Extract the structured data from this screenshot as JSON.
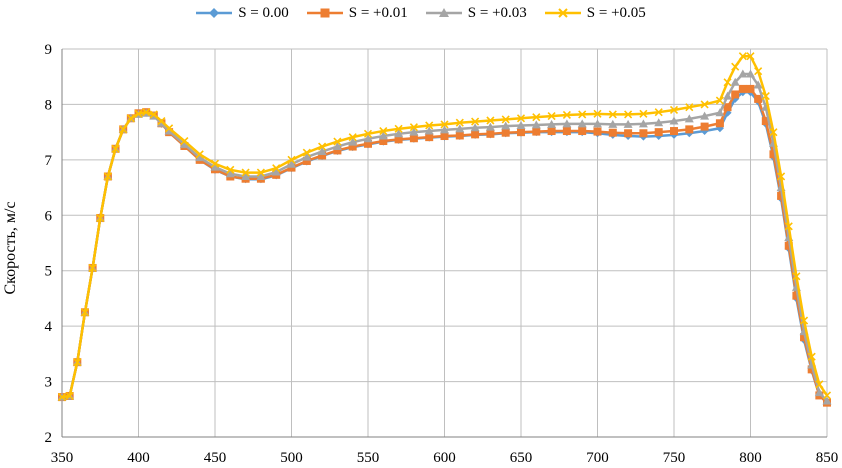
{
  "chart_data": {
    "type": "line",
    "title": "",
    "xlabel": "",
    "ylabel": "Скорость, м/с",
    "xlim": [
      350,
      850
    ],
    "ylim": [
      2,
      9
    ],
    "x_ticks": [
      "350",
      "400",
      "450",
      "500",
      "550",
      "600",
      "650",
      "700",
      "750",
      "800",
      "850"
    ],
    "y_ticks": [
      "2",
      "3",
      "4",
      "5",
      "6",
      "7",
      "8",
      "9"
    ],
    "grid": "both",
    "legend_position": "top",
    "x": [
      350,
      355,
      360,
      365,
      370,
      375,
      380,
      385,
      390,
      395,
      400,
      405,
      410,
      415,
      420,
      430,
      440,
      450,
      460,
      470,
      480,
      490,
      500,
      510,
      520,
      530,
      540,
      550,
      560,
      570,
      580,
      590,
      600,
      610,
      620,
      630,
      640,
      650,
      660,
      670,
      680,
      690,
      700,
      710,
      720,
      730,
      740,
      750,
      760,
      770,
      780,
      785,
      790,
      795,
      800,
      805,
      810,
      815,
      820,
      825,
      830,
      835,
      840,
      845,
      850
    ],
    "series": [
      {
        "name": "S = 0.00",
        "color": "#5B9BD5",
        "marker": "diamond",
        "values": [
          2.72,
          2.74,
          3.35,
          4.25,
          5.05,
          5.95,
          6.7,
          7.2,
          7.55,
          7.75,
          7.83,
          7.85,
          7.8,
          7.65,
          7.5,
          7.25,
          7.0,
          6.82,
          6.7,
          6.65,
          6.65,
          6.72,
          6.85,
          6.97,
          7.07,
          7.16,
          7.23,
          7.28,
          7.33,
          7.36,
          7.38,
          7.4,
          7.42,
          7.43,
          7.45,
          7.46,
          7.48,
          7.49,
          7.5,
          7.5,
          7.5,
          7.5,
          7.48,
          7.45,
          7.43,
          7.42,
          7.43,
          7.45,
          7.48,
          7.52,
          7.57,
          7.85,
          8.1,
          8.22,
          8.22,
          8.05,
          7.65,
          7.05,
          6.3,
          5.4,
          4.5,
          3.75,
          3.2,
          2.75,
          2.62
        ]
      },
      {
        "name": "S = +0.01",
        "color": "#ED7D31",
        "marker": "square",
        "values": [
          2.72,
          2.74,
          3.35,
          4.25,
          5.05,
          5.95,
          6.7,
          7.2,
          7.55,
          7.75,
          7.84,
          7.86,
          7.8,
          7.66,
          7.5,
          7.25,
          7.0,
          6.83,
          6.7,
          6.66,
          6.66,
          6.73,
          6.86,
          6.98,
          7.08,
          7.17,
          7.24,
          7.29,
          7.34,
          7.37,
          7.39,
          7.41,
          7.43,
          7.44,
          7.46,
          7.47,
          7.49,
          7.5,
          7.51,
          7.52,
          7.52,
          7.52,
          7.51,
          7.49,
          7.48,
          7.48,
          7.5,
          7.52,
          7.55,
          7.6,
          7.66,
          7.95,
          8.18,
          8.28,
          8.28,
          8.1,
          7.7,
          7.1,
          6.35,
          5.45,
          4.55,
          3.8,
          3.22,
          2.75,
          2.62
        ]
      },
      {
        "name": "S = +0.03",
        "color": "#A5A5A5",
        "marker": "triangle",
        "values": [
          2.72,
          2.74,
          3.35,
          4.25,
          5.05,
          5.95,
          6.7,
          7.2,
          7.55,
          7.75,
          7.82,
          7.84,
          7.79,
          7.66,
          7.52,
          7.28,
          7.04,
          6.87,
          6.75,
          6.7,
          6.7,
          6.78,
          6.92,
          7.05,
          7.15,
          7.24,
          7.32,
          7.38,
          7.43,
          7.47,
          7.5,
          7.52,
          7.54,
          7.56,
          7.58,
          7.59,
          7.61,
          7.62,
          7.63,
          7.64,
          7.65,
          7.65,
          7.65,
          7.64,
          7.64,
          7.65,
          7.67,
          7.7,
          7.74,
          7.79,
          7.85,
          8.15,
          8.4,
          8.55,
          8.55,
          8.35,
          7.95,
          7.3,
          6.5,
          5.6,
          4.7,
          3.9,
          3.3,
          2.8,
          2.65
        ]
      },
      {
        "name": "S = +0.05",
        "color": "#FFC000",
        "marker": "cross",
        "values": [
          2.72,
          2.74,
          3.35,
          4.25,
          5.05,
          5.95,
          6.7,
          7.2,
          7.55,
          7.75,
          7.83,
          7.86,
          7.82,
          7.7,
          7.57,
          7.34,
          7.1,
          6.93,
          6.82,
          6.77,
          6.77,
          6.85,
          7.0,
          7.13,
          7.24,
          7.33,
          7.41,
          7.47,
          7.52,
          7.56,
          7.59,
          7.62,
          7.64,
          7.67,
          7.69,
          7.71,
          7.73,
          7.75,
          7.77,
          7.79,
          7.81,
          7.82,
          7.83,
          7.82,
          7.82,
          7.83,
          7.86,
          7.9,
          7.95,
          8.0,
          8.07,
          8.4,
          8.68,
          8.87,
          8.87,
          8.6,
          8.15,
          7.5,
          6.7,
          5.8,
          4.9,
          4.1,
          3.45,
          2.95,
          2.75
        ]
      }
    ]
  }
}
